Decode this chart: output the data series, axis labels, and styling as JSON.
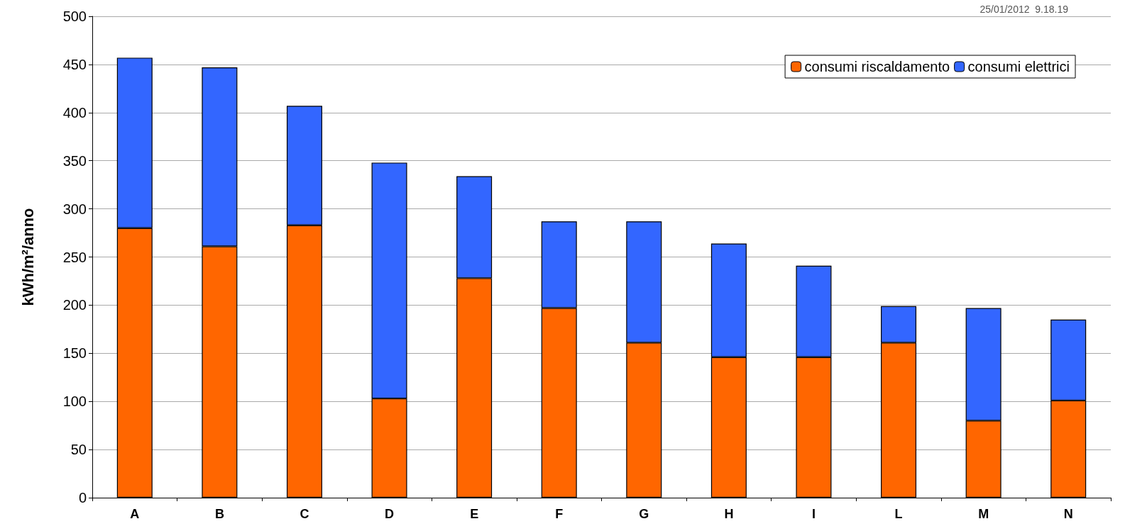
{
  "chart_data": {
    "type": "bar",
    "stacked": true,
    "ylabel": "kWh/m²/anno",
    "categories": [
      "A",
      "B",
      "C",
      "D",
      "E",
      "F",
      "G",
      "H",
      "I",
      "L",
      "M",
      "N"
    ],
    "series": [
      {
        "name": "consumi riscaldamento",
        "color": "#ff6600",
        "values": [
          280,
          261,
          283,
          103,
          228,
          197,
          161,
          146,
          146,
          161,
          80,
          101
        ]
      },
      {
        "name": "consumi elettrici",
        "color": "#3366ff",
        "values": [
          177,
          186,
          124,
          245,
          106,
          90,
          126,
          118,
          95,
          38,
          117,
          84
        ]
      }
    ],
    "ylim": [
      0,
      500
    ],
    "yticks": [
      0,
      50,
      100,
      150,
      200,
      250,
      300,
      350,
      400,
      450,
      500
    ],
    "grid": "y",
    "legend": "top right",
    "annotations": [
      "25/01/2012  9.18.19"
    ]
  }
}
